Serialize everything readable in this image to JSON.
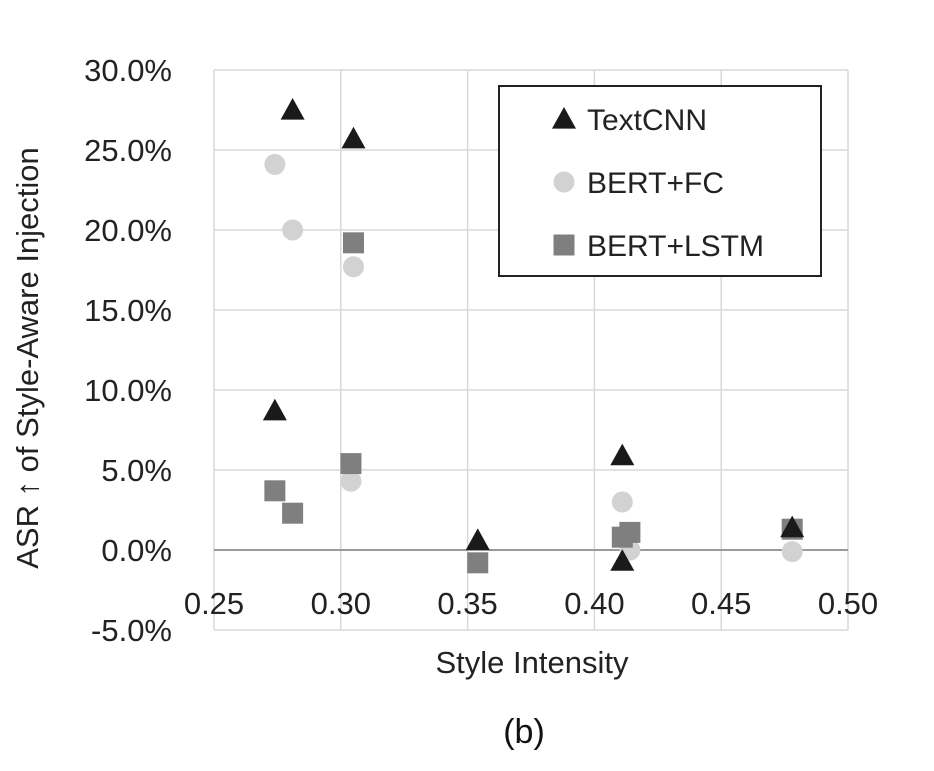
{
  "chart_data": {
    "type": "scatter",
    "xlabel": "Style Intensity",
    "ylabel": "ASR ↑ of Style-Aware Injection",
    "caption": "(b)",
    "xlim": [
      0.25,
      0.5
    ],
    "ylim": [
      -5.0,
      30.0
    ],
    "x_ticks": [
      "0.25",
      "0.30",
      "0.35",
      "0.40",
      "0.45",
      "0.50"
    ],
    "y_ticks": [
      "-5.0%",
      "0.0%",
      "5.0%",
      "10.0%",
      "15.0%",
      "20.0%",
      "25.0%",
      "30.0%"
    ],
    "grid": true,
    "legend_position": "top-right",
    "series": [
      {
        "name": "TextCNN",
        "marker": "triangle",
        "color": "#1a1a1a",
        "points": [
          [
            0.281,
            27.5
          ],
          [
            0.305,
            25.7
          ],
          [
            0.274,
            8.7
          ],
          [
            0.354,
            0.6
          ],
          [
            0.411,
            5.9
          ],
          [
            0.411,
            -0.7
          ],
          [
            0.478,
            1.4
          ]
        ]
      },
      {
        "name": "BERT+FC",
        "marker": "circle",
        "color": "#d2d2d2",
        "points": [
          [
            0.274,
            24.1
          ],
          [
            0.281,
            20.0
          ],
          [
            0.305,
            17.7
          ],
          [
            0.304,
            4.3
          ],
          [
            0.411,
            3.0
          ],
          [
            0.414,
            0.0
          ],
          [
            0.478,
            -0.1
          ]
        ]
      },
      {
        "name": "BERT+LSTM",
        "marker": "square",
        "color": "#7f7f7f",
        "points": [
          [
            0.305,
            19.2
          ],
          [
            0.304,
            5.4
          ],
          [
            0.274,
            3.7
          ],
          [
            0.281,
            2.3
          ],
          [
            0.354,
            -0.8
          ],
          [
            0.411,
            0.8
          ],
          [
            0.414,
            1.1
          ],
          [
            0.478,
            1.3
          ]
        ]
      }
    ]
  }
}
